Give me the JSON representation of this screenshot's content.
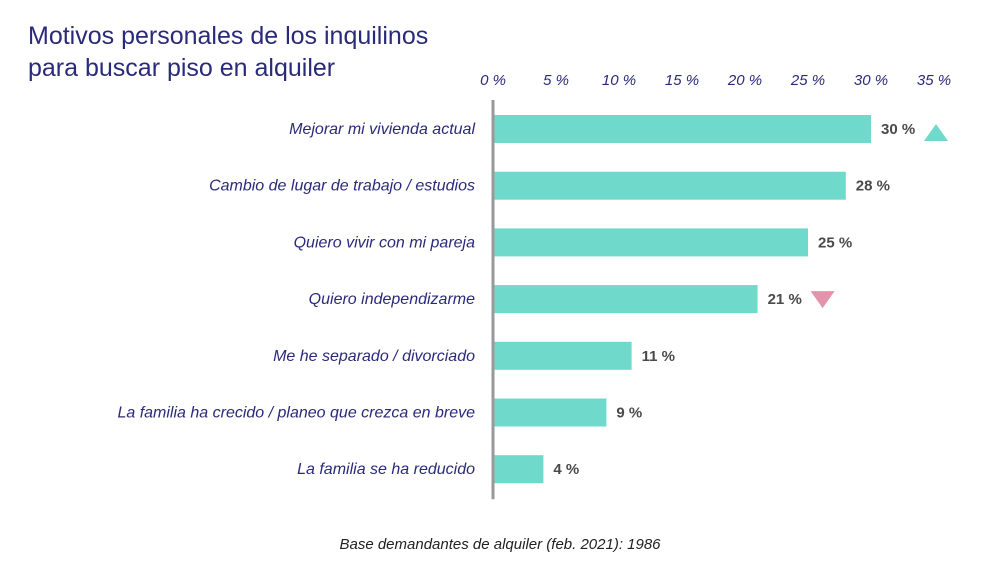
{
  "title": "Motivos personales de los inquilinos para buscar piso en alquiler",
  "footnote": "Base demandantes de alquiler (feb. 2021): 1986",
  "chart_data": {
    "type": "bar",
    "orientation": "horizontal",
    "title": "Motivos personales de los inquilinos para buscar piso en alquiler",
    "categories": [
      "Mejorar mi vivienda actual",
      "Cambio de lugar de trabajo / estudios",
      "Quiero vivir con mi pareja",
      "Quiero independizarme",
      "Me he separado / divorciado",
      "La familia ha crecido / planeo que crezca en breve",
      "La familia se ha reducido"
    ],
    "values": [
      30,
      28,
      25,
      21,
      11,
      9,
      4
    ],
    "value_labels": [
      "30 %",
      "28 %",
      "25 %",
      "21 %",
      "11 %",
      "9 %",
      "4 %"
    ],
    "trend": [
      "up",
      null,
      null,
      "down",
      null,
      null,
      null
    ],
    "xticks": [
      "0 %",
      "5 %",
      "10 %",
      "15 %",
      "20 %",
      "25 %",
      "30 %",
      "35 %"
    ],
    "xlim": [
      0,
      35
    ],
    "xaxis_position": "top",
    "grid": false,
    "legend": "none",
    "colors": {
      "bar": "#6fd9cc",
      "trend_up": "#6fd9cc",
      "trend_down": "#e592ad",
      "axis": "#999999",
      "text": "#2a2a7a"
    }
  }
}
